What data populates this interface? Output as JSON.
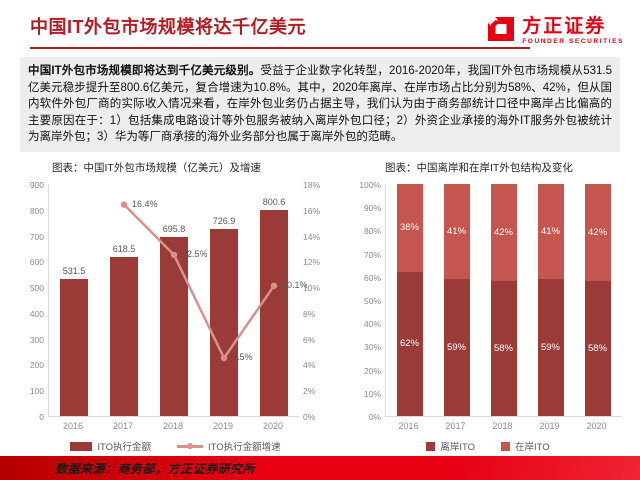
{
  "header": {
    "title": "中国IT外包市场规模将达千亿美元",
    "logo": {
      "cn": "方正证券",
      "en": "FOUNDER SECURITIES"
    }
  },
  "summary": {
    "bold_lead": "中国IT外包市场规模即将达到千亿美元级别。",
    "body": "受益于企业数字化转型，2016-2020年，我国IT外包市场规模从531.5亿美元稳步提升至800.6亿美元，复合增速为10.8%。其中，2020年离岸、在岸市场占比分别为58%、42%，但从国内软件外包厂商的实际收入情况来看，在岸外包业务仍占据主导，我们认为由于商务部统计口径中离岸占比偏高的主要原因在于：1）包括集成电路设计等外包服务被纳入离岸外包口径；2）外资企业承接的海外IT服务外包被统计为离岸外包；3）华为等厂商承接的海外业务部分也属于离岸外包的范畴。"
  },
  "chart_data": [
    {
      "type": "bar",
      "title": "图表：中国IT外包市场规模（亿美元）及增速",
      "categories": [
        "2016",
        "2017",
        "2018",
        "2019",
        "2020"
      ],
      "series": [
        {
          "name": "ITO执行金额",
          "type": "bar",
          "axis": "left",
          "color": "#9a3b38",
          "values": [
            531.5,
            618.5,
            695.8,
            726.9,
            800.6
          ],
          "labels": [
            "531.5",
            "618.5",
            "695.8",
            "726.9",
            "800.6"
          ]
        },
        {
          "name": "ITO执行金额增速",
          "type": "line",
          "axis": "right",
          "color": "#d9918e",
          "values": [
            null,
            16.4,
            12.5,
            4.5,
            10.1
          ],
          "labels": [
            "",
            "16.4%",
            "12.5%",
            "4.5%",
            "10.1%"
          ]
        }
      ],
      "left_axis": {
        "min": 0,
        "max": 900,
        "step": 100,
        "labels": [
          "0",
          "100",
          "200",
          "300",
          "400",
          "500",
          "600",
          "700",
          "800",
          "900"
        ]
      },
      "right_axis": {
        "min": 0,
        "max": 18,
        "step": 2,
        "labels": [
          "0%",
          "2%",
          "4%",
          "6%",
          "8%",
          "10%",
          "12%",
          "14%",
          "16%",
          "18%"
        ]
      },
      "legend_position": "bottom",
      "grid": false
    },
    {
      "type": "bar",
      "subtype": "stacked-100",
      "title": "图表：中国离岸和在岸IT外包结构及变化",
      "categories": [
        "2016",
        "2017",
        "2018",
        "2019",
        "2020"
      ],
      "series": [
        {
          "name": "离岸ITO",
          "color": "#9a3b38",
          "values": [
            62,
            59,
            58,
            59,
            58
          ],
          "labels": [
            "62%",
            "59%",
            "58%",
            "59%",
            "58%"
          ]
        },
        {
          "name": "在岸ITO",
          "color": "#c5554f",
          "values": [
            38,
            41,
            42,
            41,
            42
          ],
          "labels": [
            "38%",
            "41%",
            "42%",
            "41%",
            "42%"
          ]
        }
      ],
      "y_axis": {
        "min": 0,
        "max": 100,
        "step": 10,
        "labels": [
          "0%",
          "10%",
          "20%",
          "30%",
          "40%",
          "50%",
          "60%",
          "70%",
          "80%",
          "90%",
          "100%"
        ]
      },
      "legend_position": "bottom",
      "grid": false
    }
  ],
  "footer": {
    "source": "数据来源：商务部，方正证券研究所"
  },
  "colors": {
    "title_red": "#b01d23",
    "logo_red": "#e60012",
    "bar_dark_red": "#9a3b38",
    "bar_light_red": "#c5554f",
    "line_pink": "#d9918e",
    "footer_red": "#e60012",
    "summary_bg": "#ededed"
  }
}
